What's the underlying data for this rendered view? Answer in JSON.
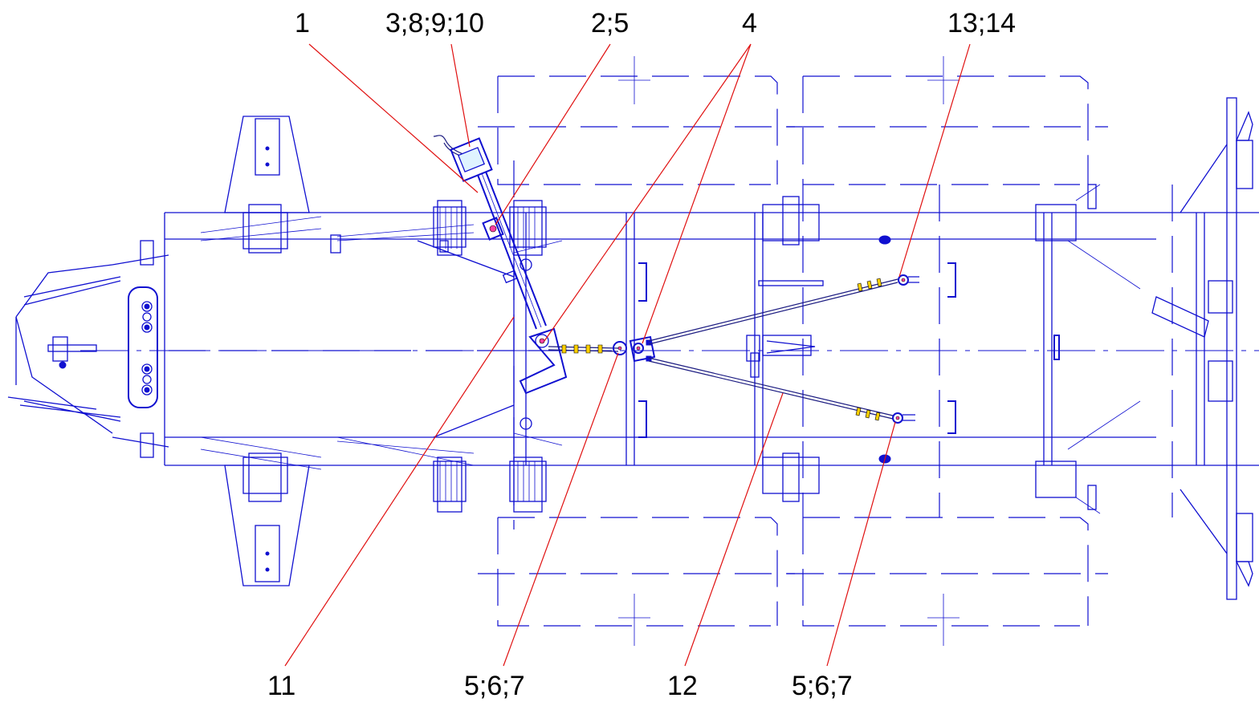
{
  "callouts": {
    "c1": "1",
    "c3_8_9_10": "3;8;9;10",
    "c2_5": "2;5",
    "c4": "4",
    "c13_14": "13;14",
    "c11": "11",
    "c5_6_7_a": "5;6;7",
    "c12": "12",
    "c5_6_7_b": "5;6;7"
  },
  "colors": {
    "drawing": "#1010d0",
    "leader": "#e01010",
    "text": "#000000"
  }
}
